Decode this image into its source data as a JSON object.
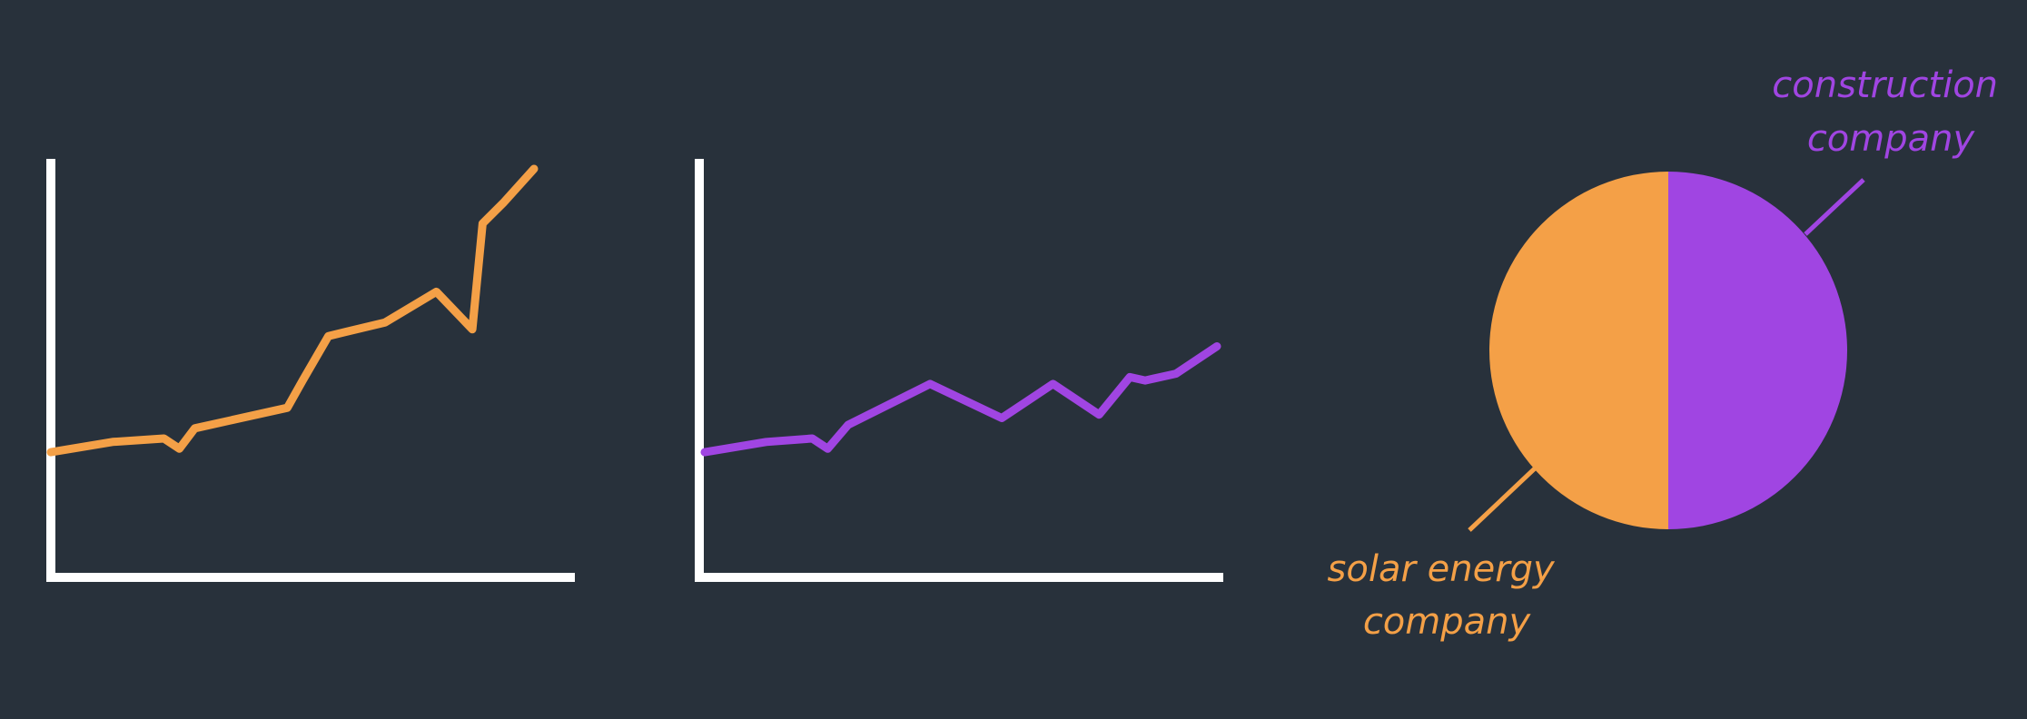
{
  "colors": {
    "background": "#28313b",
    "axis": "#ffffff",
    "solar": "#f4a047",
    "construction": "#a045e2"
  },
  "chart_data": [
    {
      "type": "line",
      "title": "",
      "xlabel": "",
      "ylabel": "",
      "grid": false,
      "xlim": [
        0,
        100
      ],
      "ylim": [
        0,
        100
      ],
      "series": [
        {
          "color_key": "solar",
          "x": [
            0,
            12,
            22,
            25,
            28,
            46,
            49,
            54,
            65,
            75,
            82,
            84,
            88,
            94
          ],
          "y": [
            17,
            20,
            21,
            18,
            24,
            30,
            38,
            51,
            55,
            64,
            53,
            84,
            90,
            100
          ]
        }
      ]
    },
    {
      "type": "line",
      "title": "",
      "xlabel": "",
      "ylabel": "",
      "grid": false,
      "xlim": [
        0,
        100
      ],
      "ylim": [
        0,
        100
      ],
      "series": [
        {
          "color_key": "construction",
          "x": [
            0,
            12,
            21,
            24,
            28,
            44,
            58,
            68,
            77,
            83,
            86,
            92,
            100
          ],
          "y": [
            17,
            20,
            21,
            18,
            25,
            37,
            27,
            37,
            28,
            39,
            38,
            40,
            48
          ]
        }
      ]
    },
    {
      "type": "pie",
      "title": "",
      "slices": [
        {
          "label": "construction company",
          "value": 50,
          "color_key": "construction"
        },
        {
          "label": "solar energy company",
          "value": 50,
          "color_key": "solar"
        }
      ]
    }
  ],
  "labels": {
    "construction_line1": "construction",
    "construction_line2": "company",
    "solar_line1": "solar energy",
    "solar_line2": "company"
  }
}
